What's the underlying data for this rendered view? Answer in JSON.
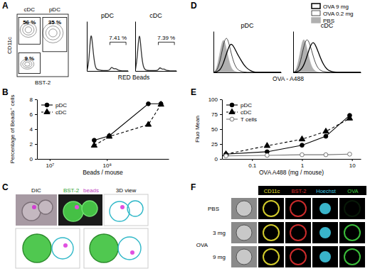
{
  "panel_labels": [
    "A",
    "B",
    "C",
    "D",
    "E",
    "F"
  ],
  "chart_data": [
    {
      "type": "gate",
      "x_label": "BST-2",
      "y_label": "CD11c",
      "tick_labels": false,
      "gates": [
        {
          "name": "cDC",
          "label": "56 %"
        },
        {
          "name": "pDC",
          "label": "35 %"
        },
        {
          "label": "9 %"
        }
      ]
    },
    {
      "type": "histogram",
      "title": "pDC",
      "tick_labels": false,
      "color": "#333333",
      "x": [
        0,
        50,
        100,
        150,
        200,
        250,
        300,
        350,
        400,
        450,
        500,
        550,
        600,
        650,
        700,
        750,
        800,
        850,
        900,
        950,
        1000
      ],
      "values": [
        0,
        15,
        100,
        45,
        8,
        3,
        2,
        1,
        1,
        1,
        1,
        1,
        10,
        4,
        6,
        2,
        1,
        0,
        0,
        0,
        0
      ],
      "xlim": [
        0,
        1000
      ],
      "ylim": [
        0,
        110
      ],
      "annotations": [
        {
          "label": "7.41 %",
          "gate": [
            560,
            950
          ]
        }
      ]
    },
    {
      "type": "histogram",
      "title": "cDC",
      "x_label": "RED Beads",
      "tick_labels": false,
      "color": "#333333",
      "x": [
        0,
        50,
        100,
        150,
        200,
        250,
        300,
        350,
        400,
        450,
        500,
        550,
        600,
        650,
        700,
        750,
        800,
        850,
        900,
        950,
        1000
      ],
      "values": [
        0,
        25,
        100,
        35,
        6,
        2,
        1,
        1,
        1,
        1,
        1,
        1,
        9,
        3,
        5,
        1,
        1,
        0,
        0,
        0,
        0
      ],
      "xlim": [
        0,
        1000
      ],
      "ylim": [
        0,
        110
      ],
      "annotations": [
        {
          "label": "7.39 %",
          "gate": [
            560,
            950
          ]
        }
      ]
    },
    {
      "type": "histogram",
      "title": "pDC",
      "tick_labels": false,
      "x": [
        0,
        50,
        100,
        150,
        200,
        250,
        300,
        350,
        400,
        450,
        500,
        550,
        600,
        650,
        700,
        750,
        800,
        850,
        900,
        950,
        1000
      ],
      "series": [
        {
          "color": "#000000",
          "line_style": "solid",
          "values": [
            0,
            1,
            6,
            25,
            55,
            80,
            70,
            50,
            35,
            20,
            10,
            4,
            1,
            0,
            0,
            0,
            0,
            0,
            0,
            0,
            0
          ]
        },
        {
          "color": "#000000",
          "line_style": "thin",
          "values": [
            0,
            3,
            30,
            80,
            100,
            60,
            25,
            8,
            3,
            1,
            0,
            0,
            0,
            0,
            0,
            0,
            0,
            0,
            0,
            0,
            0
          ]
        },
        {
          "color": "#b0b0b0",
          "line_style": "filled",
          "values": [
            0,
            8,
            60,
            100,
            55,
            15,
            3,
            1,
            0,
            0,
            0,
            0,
            0,
            0,
            0,
            0,
            0,
            0,
            0,
            0,
            0
          ]
        }
      ],
      "xlim": [
        0,
        1000
      ],
      "ylim": [
        0,
        110
      ]
    },
    {
      "type": "histogram",
      "title": "cDC",
      "x_label": "OVA - A488",
      "tick_labels": false,
      "legend": "top right",
      "x": [
        0,
        50,
        100,
        150,
        200,
        250,
        300,
        350,
        400,
        450,
        500,
        550,
        600,
        650,
        700,
        750,
        800,
        850,
        900,
        950,
        1000
      ],
      "series": [
        {
          "name": "OVA 9 mg",
          "color": "#000000",
          "line_style": "solid",
          "values": [
            0,
            1,
            4,
            15,
            40,
            70,
            85,
            65,
            40,
            20,
            8,
            3,
            1,
            0,
            0,
            0,
            0,
            0,
            0,
            0,
            0
          ]
        },
        {
          "name": "OVA 0.2 mg",
          "color": "#000000",
          "line_style": "thin",
          "values": [
            0,
            2,
            20,
            65,
            95,
            75,
            40,
            15,
            5,
            2,
            1,
            0,
            0,
            0,
            0,
            0,
            0,
            0,
            0,
            0,
            0
          ]
        },
        {
          "name": "PBS",
          "color": "#b0b0b0",
          "line_style": "filled",
          "values": [
            0,
            6,
            50,
            100,
            70,
            25,
            6,
            1,
            0,
            0,
            0,
            0,
            0,
            0,
            0,
            0,
            0,
            0,
            0,
            0,
            0
          ]
        }
      ],
      "xlim": [
        0,
        1000
      ],
      "ylim": [
        0,
        110
      ]
    },
    {
      "type": "line",
      "x_label": "Beads / mouse",
      "y_label": "Percentage of Beads⁺ cells",
      "log": "x",
      "legend": "top left",
      "x": [
        60000000,
        110000000,
        530000000,
        880000000
      ],
      "series": [
        {
          "name": "pDC",
          "color": "#000000",
          "marker": "circle",
          "line_style": "solid",
          "values": [
            2.5,
            3.1,
            7.4,
            7.4
          ]
        },
        {
          "name": "cDC",
          "color": "#000000",
          "marker": "triangle",
          "line_style": "dashed",
          "values": [
            1.8,
            3.0,
            4.6,
            7.3
          ]
        }
      ],
      "xlim": [
        6000000,
        1200000000
      ],
      "ylim": [
        0,
        8
      ],
      "xticks": [
        {
          "value": 10000000,
          "label": "10⁷"
        },
        {
          "value": 100000000,
          "label": "10⁸"
        }
      ],
      "yticks": [
        0,
        2,
        4,
        6,
        8
      ]
    },
    {
      "type": "line",
      "x_label": "OVA A488 (mg / mouse)",
      "y_label": "Fluo Mean",
      "log": "x",
      "legend": "top left",
      "x": [
        0.03,
        0.2,
        1,
        3,
        9
      ],
      "series": [
        {
          "name": "pDC",
          "color": "#000000",
          "marker": "circle",
          "line_style": "solid",
          "values": [
            8,
            12,
            23,
            38,
            73
          ]
        },
        {
          "name": "cDC",
          "color": "#000000",
          "marker": "triangle",
          "line_style": "dashed",
          "values": [
            8,
            22,
            33,
            46,
            68
          ]
        },
        {
          "name": "T cells",
          "color": "#777777",
          "marker": "circle-open",
          "line_style": "solid",
          "values": [
            5,
            6,
            7,
            7,
            8
          ]
        }
      ],
      "xlim": [
        0.025,
        15
      ],
      "ylim": [
        0,
        100
      ],
      "xticks": [
        0.1,
        1,
        10
      ],
      "yticks": [
        0,
        25,
        50,
        75,
        100
      ]
    }
  ],
  "image_panels": {
    "C": {
      "labels": [
        "DIC",
        "BST-2",
        "beads",
        "3D view"
      ],
      "colors": [
        "#000000",
        "#2e9e2e",
        "#c03cc0",
        "#000000"
      ]
    },
    "F": {
      "columns": [
        "CD11c",
        "BST-2",
        "Hoechst",
        "OVA"
      ],
      "colors": [
        "#e8e030",
        "#e03030",
        "#40c8e0",
        "#40d040"
      ],
      "rows": [
        "PBS",
        "3 mg",
        "9 mg"
      ],
      "group": "OVA"
    }
  }
}
